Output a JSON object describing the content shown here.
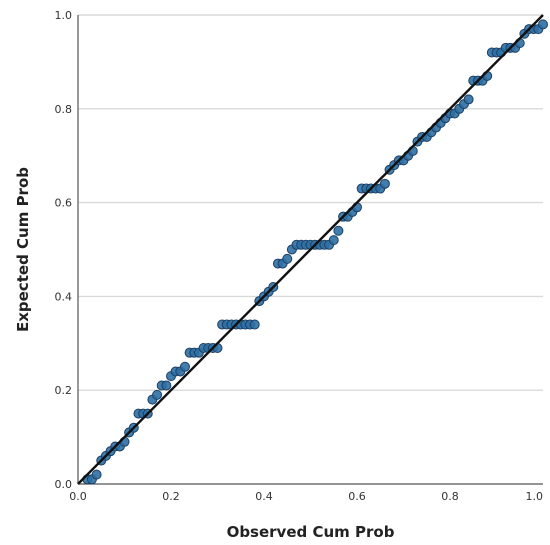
{
  "chart_data": {
    "type": "scatter",
    "title": "",
    "xlabel": "Observed Cum Prob",
    "ylabel": "Expected Cum Prob",
    "xlim": [
      0.0,
      1.0
    ],
    "ylim": [
      0.0,
      1.0
    ],
    "x_ticks": [
      "0.0",
      "0.2",
      "0.4",
      "0.6",
      "0.8",
      "1.0"
    ],
    "y_ticks": [
      "0.0",
      "0.2",
      "0.4",
      "0.6",
      "0.8",
      "1.0"
    ],
    "grid": "horizontal",
    "reference_line": {
      "from": [
        0.0,
        0.0
      ],
      "to": [
        1.0,
        1.0
      ]
    },
    "points": [
      [
        0.02,
        0.01
      ],
      [
        0.03,
        0.01
      ],
      [
        0.04,
        0.02
      ],
      [
        0.05,
        0.05
      ],
      [
        0.06,
        0.06
      ],
      [
        0.07,
        0.07
      ],
      [
        0.08,
        0.08
      ],
      [
        0.09,
        0.08
      ],
      [
        0.1,
        0.09
      ],
      [
        0.11,
        0.11
      ],
      [
        0.12,
        0.12
      ],
      [
        0.13,
        0.15
      ],
      [
        0.14,
        0.15
      ],
      [
        0.15,
        0.15
      ],
      [
        0.16,
        0.18
      ],
      [
        0.17,
        0.19
      ],
      [
        0.18,
        0.21
      ],
      [
        0.19,
        0.21
      ],
      [
        0.2,
        0.23
      ],
      [
        0.21,
        0.24
      ],
      [
        0.22,
        0.24
      ],
      [
        0.23,
        0.25
      ],
      [
        0.24,
        0.28
      ],
      [
        0.25,
        0.28
      ],
      [
        0.26,
        0.28
      ],
      [
        0.27,
        0.29
      ],
      [
        0.28,
        0.29
      ],
      [
        0.29,
        0.29
      ],
      [
        0.3,
        0.29
      ],
      [
        0.31,
        0.34
      ],
      [
        0.32,
        0.34
      ],
      [
        0.33,
        0.34
      ],
      [
        0.34,
        0.34
      ],
      [
        0.35,
        0.34
      ],
      [
        0.36,
        0.34
      ],
      [
        0.37,
        0.34
      ],
      [
        0.38,
        0.34
      ],
      [
        0.39,
        0.39
      ],
      [
        0.4,
        0.4
      ],
      [
        0.41,
        0.41
      ],
      [
        0.42,
        0.42
      ],
      [
        0.43,
        0.47
      ],
      [
        0.44,
        0.47
      ],
      [
        0.45,
        0.48
      ],
      [
        0.46,
        0.5
      ],
      [
        0.47,
        0.51
      ],
      [
        0.48,
        0.51
      ],
      [
        0.49,
        0.51
      ],
      [
        0.5,
        0.51
      ],
      [
        0.51,
        0.51
      ],
      [
        0.52,
        0.51
      ],
      [
        0.53,
        0.51
      ],
      [
        0.54,
        0.51
      ],
      [
        0.55,
        0.52
      ],
      [
        0.56,
        0.54
      ],
      [
        0.57,
        0.57
      ],
      [
        0.58,
        0.57
      ],
      [
        0.59,
        0.58
      ],
      [
        0.6,
        0.59
      ],
      [
        0.61,
        0.63
      ],
      [
        0.62,
        0.63
      ],
      [
        0.63,
        0.63
      ],
      [
        0.64,
        0.63
      ],
      [
        0.65,
        0.63
      ],
      [
        0.66,
        0.64
      ],
      [
        0.67,
        0.67
      ],
      [
        0.68,
        0.68
      ],
      [
        0.69,
        0.69
      ],
      [
        0.7,
        0.69
      ],
      [
        0.71,
        0.7
      ],
      [
        0.72,
        0.71
      ],
      [
        0.73,
        0.73
      ],
      [
        0.74,
        0.74
      ],
      [
        0.75,
        0.74
      ],
      [
        0.76,
        0.75
      ],
      [
        0.77,
        0.76
      ],
      [
        0.78,
        0.77
      ],
      [
        0.79,
        0.78
      ],
      [
        0.8,
        0.79
      ],
      [
        0.81,
        0.79
      ],
      [
        0.82,
        0.8
      ],
      [
        0.83,
        0.81
      ],
      [
        0.84,
        0.82
      ],
      [
        0.85,
        0.86
      ],
      [
        0.86,
        0.86
      ],
      [
        0.87,
        0.86
      ],
      [
        0.88,
        0.87
      ],
      [
        0.89,
        0.92
      ],
      [
        0.9,
        0.92
      ],
      [
        0.91,
        0.92
      ],
      [
        0.92,
        0.93
      ],
      [
        0.93,
        0.93
      ],
      [
        0.94,
        0.93
      ],
      [
        0.95,
        0.94
      ],
      [
        0.96,
        0.96
      ],
      [
        0.97,
        0.97
      ],
      [
        0.98,
        0.97
      ],
      [
        0.99,
        0.97
      ],
      [
        1.0,
        0.98
      ]
    ]
  },
  "colors": {
    "point_fill": "#2e6fa3",
    "point_stroke": "#1a3f66",
    "reference_line": "#111111",
    "grid": "#d9d9d9",
    "axis": "#555555"
  }
}
